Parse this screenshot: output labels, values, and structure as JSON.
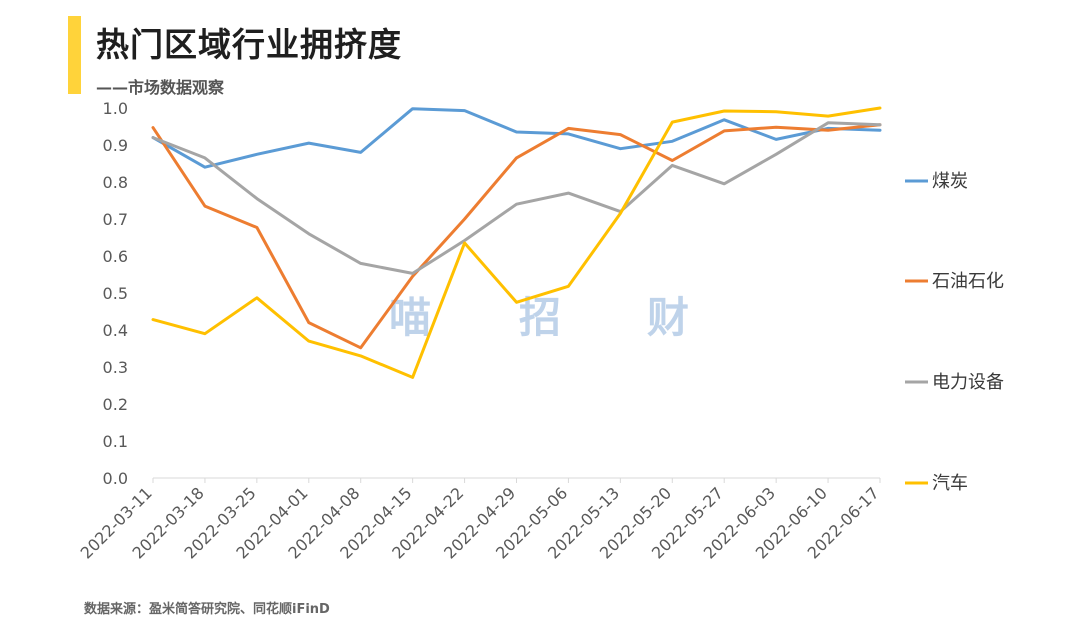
{
  "header": {
    "title": "热门区域行业拥挤度",
    "subtitle": "——市场数据观察"
  },
  "footer": {
    "source": "数据来源：盈米简答研究院、同花顺iFinD"
  },
  "watermark": [
    "喵",
    "招",
    "财"
  ],
  "chart_data": {
    "type": "line",
    "title": "热门区域行业拥挤度",
    "xlabel": "",
    "ylabel": "",
    "x": [
      "2022-03-11",
      "2022-03-18",
      "2022-03-25",
      "2022-04-01",
      "2022-04-08",
      "2022-04-15",
      "2022-04-22",
      "2022-04-29",
      "2022-05-06",
      "2022-05-13",
      "2022-05-20",
      "2022-05-27",
      "2022-06-03",
      "2022-06-10",
      "2022-06-17"
    ],
    "ylim": [
      0,
      1.0
    ],
    "yticks": [
      "0.0",
      "0.1",
      "0.2",
      "0.3",
      "0.4",
      "0.5",
      "0.6",
      "0.7",
      "0.8",
      "0.9",
      "1.0"
    ],
    "grid": false,
    "legend_position": "right",
    "series": [
      {
        "name": "煤炭",
        "color": "#5B9BD5",
        "values": [
          0.92,
          0.84,
          0.875,
          0.905,
          0.88,
          0.998,
          0.993,
          0.935,
          0.93,
          0.89,
          0.91,
          0.968,
          0.915,
          0.945,
          0.94
        ]
      },
      {
        "name": "石油石化",
        "color": "#ED7D31",
        "values": [
          0.947,
          0.735,
          0.677,
          0.42,
          0.352,
          0.545,
          0.7,
          0.865,
          0.945,
          0.928,
          0.858,
          0.938,
          0.948,
          0.94,
          0.955
        ]
      },
      {
        "name": "电力设备",
        "color": "#A5A5A5",
        "values": [
          0.92,
          0.865,
          0.755,
          0.66,
          0.58,
          0.553,
          0.642,
          0.74,
          0.77,
          0.72,
          0.845,
          0.795,
          0.875,
          0.96,
          0.955
        ]
      },
      {
        "name": "汽车",
        "color": "#FFC000",
        "values": [
          0.428,
          0.39,
          0.487,
          0.37,
          0.33,
          0.272,
          0.635,
          0.475,
          0.518,
          0.715,
          0.962,
          0.992,
          0.99,
          0.978,
          1.0
        ]
      }
    ]
  }
}
